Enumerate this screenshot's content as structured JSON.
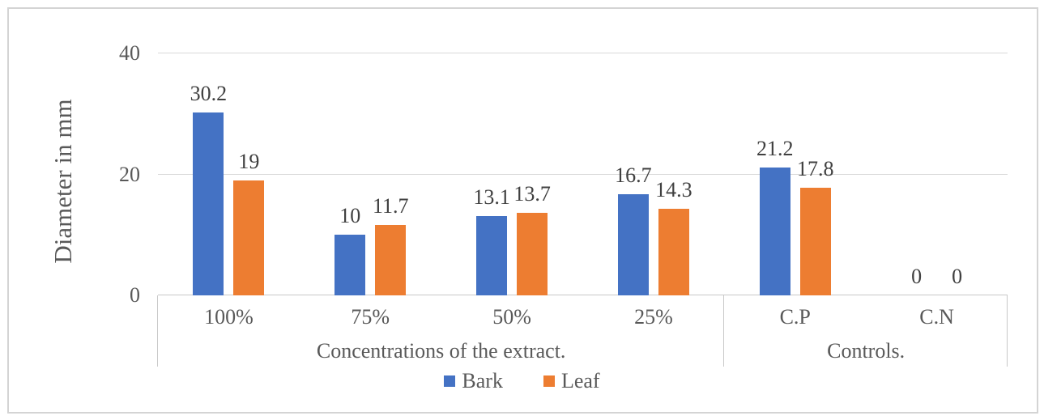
{
  "figure": {
    "background": "#ffffff",
    "border_color": "#d4d4d4"
  },
  "chart_data": {
    "type": "bar",
    "title": "",
    "xlabel": "",
    "ylabel": "Diameter in mm",
    "ylim": [
      0,
      40
    ],
    "yticks": [
      0,
      20,
      40
    ],
    "grid": "horizontal",
    "legend_position": "bottom",
    "data_labels_visible": true,
    "categories": [
      "100%",
      "75%",
      "50%",
      "25%",
      "C.P",
      "C.N"
    ],
    "category_groups": [
      {
        "label": "Concentrations of the extract.",
        "span": 4
      },
      {
        "label": "Controls.",
        "span": 2
      }
    ],
    "series": [
      {
        "name": "Bark",
        "color": "#4472C4",
        "values": [
          30.2,
          10,
          13.1,
          16.7,
          21.2,
          0
        ]
      },
      {
        "name": "Leaf",
        "color": "#ED7D31",
        "values": [
          19,
          11.7,
          13.7,
          14.3,
          17.8,
          0
        ]
      }
    ],
    "colors": {
      "axis_text": "#595959",
      "data_label": "#404040",
      "gridline": "#d9d9d9",
      "axis_line": "#c9c9c9"
    }
  }
}
